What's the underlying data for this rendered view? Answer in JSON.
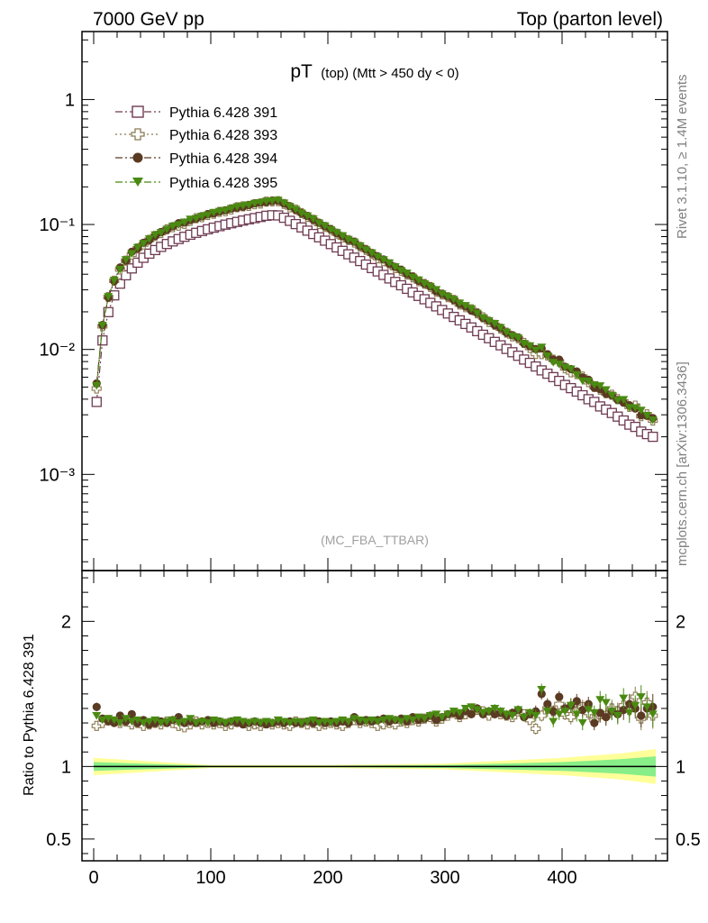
{
  "header": {
    "energy_label": "7000 GeV pp",
    "process_label": "Top (parton level)"
  },
  "side": {
    "rivet_label": "Rivet 3.1.10, ≥ 1.4M events",
    "site_label": "mcplots.cern.ch [arXiv:1306.3436]"
  },
  "chart_data": [
    {
      "type": "line",
      "panel": "main",
      "title_main": "pT",
      "title_sub": "(top) (Mtt > 450 dy < 0)",
      "watermark": "(MC_FBA_TTBAR)",
      "yscale": "log",
      "xlim": [
        -10,
        490
      ],
      "ylim": [
        0.00017,
        3.5
      ],
      "y_tick_labels": [
        "1",
        "10⁻¹",
        "10⁻²",
        "10⁻³"
      ],
      "y_tick_values": [
        1,
        0.1,
        0.01,
        0.001
      ],
      "legend_position": "top-left",
      "series": [
        {
          "name": "Pythia 6.428 391",
          "color": "#6e3a52",
          "marker": "open-square",
          "line": "dash-dot",
          "x": [
            2.5,
            7.5,
            12.5,
            17.5,
            22.5,
            27.5,
            32.5,
            37.5,
            42.5,
            47.5,
            52.5,
            57.5,
            62.5,
            67.5,
            72.5,
            77.5,
            82.5,
            87.5,
            92.5,
            97.5,
            102.5,
            107.5,
            112.5,
            117.5,
            122.5,
            127.5,
            132.5,
            137.5,
            142.5,
            147.5,
            152.5,
            157.5,
            162.5,
            167.5,
            172.5,
            177.5,
            182.5,
            187.5,
            192.5,
            197.5,
            202.5,
            207.5,
            212.5,
            217.5,
            222.5,
            227.5,
            232.5,
            237.5,
            242.5,
            247.5,
            252.5,
            257.5,
            262.5,
            267.5,
            272.5,
            277.5,
            282.5,
            287.5,
            292.5,
            297.5,
            302.5,
            307.5,
            312.5,
            317.5,
            322.5,
            327.5,
            332.5,
            337.5,
            342.5,
            347.5,
            352.5,
            357.5,
            362.5,
            367.5,
            372.5,
            377.5,
            382.5,
            387.5,
            392.5,
            397.5,
            402.5,
            407.5,
            412.5,
            417.5,
            422.5,
            427.5,
            432.5,
            437.5,
            442.5,
            447.5,
            452.5,
            457.5,
            462.5,
            467.5,
            472.5,
            477.5
          ],
          "y": [
            0.0038,
            0.0118,
            0.0199,
            0.0271,
            0.0336,
            0.0392,
            0.0445,
            0.0495,
            0.0541,
            0.0584,
            0.0624,
            0.0662,
            0.0698,
            0.0732,
            0.0765,
            0.0797,
            0.0828,
            0.0858,
            0.0887,
            0.0915,
            0.0943,
            0.097,
            0.0997,
            0.1023,
            0.1049,
            0.1075,
            0.11,
            0.1125,
            0.1149,
            0.1173,
            0.1186,
            0.1182,
            0.1132,
            0.107,
            0.1007,
            0.0948,
            0.0892,
            0.0839,
            0.0789,
            0.0742,
            0.0697,
            0.0655,
            0.0615,
            0.0578,
            0.0543,
            0.051,
            0.0478,
            0.0448,
            0.0421,
            0.0395,
            0.037,
            0.0347,
            0.0326,
            0.0306,
            0.0286,
            0.0268,
            0.0252,
            0.0236,
            0.0221,
            0.0207,
            0.0194,
            0.0182,
            0.0171,
            0.016,
            0.015,
            0.014,
            0.0131,
            0.0123,
            0.0115,
            0.0108,
            0.0101,
            0.0095,
            0.0089,
            0.0083,
            0.0078,
            0.0073,
            0.0068,
            0.0064,
            0.006,
            0.0056,
            0.0052,
            0.0049,
            0.0046,
            0.0043,
            0.004,
            0.0038,
            0.0035,
            0.0033,
            0.0031,
            0.0029,
            0.0027,
            0.0025,
            0.0024,
            0.0022,
            0.0021,
            0.002
          ]
        },
        {
          "name": "Pythia 6.428 393",
          "color": "#8c7a50",
          "marker": "open-cross",
          "line": "dotted",
          "x": [],
          "y": []
        },
        {
          "name": "Pythia 6.428 394",
          "color": "#5a3a22",
          "marker": "filled-circle",
          "line": "dash-dot",
          "x": [],
          "y": []
        },
        {
          "name": "Pythia 6.428 395",
          "color": "#4a8a12",
          "marker": "filled-triangle-down",
          "line": "dash-dot",
          "x": [],
          "y": []
        }
      ]
    },
    {
      "type": "line",
      "panel": "ratio",
      "ylabel": "Ratio to Pythia 6.428 391",
      "xlim": [
        -10,
        490
      ],
      "ylim": [
        0.35,
        2.35
      ],
      "y_tick_labels": [
        "2",
        "1",
        "0.5"
      ],
      "y_tick_values": [
        2,
        1,
        0.5
      ],
      "x_tick_labels": [
        "0",
        "100",
        "200",
        "300",
        "400"
      ],
      "x_tick_values": [
        0,
        100,
        200,
        300,
        400
      ],
      "reference_line": 1,
      "band_colors": {
        "outer": "#ffff99",
        "inner": "#88ee88"
      },
      "band_x": [
        0,
        100,
        200,
        300,
        350,
        400,
        450,
        480
      ],
      "band_outer_half_width": [
        0.06,
        0.01,
        0.01,
        0.02,
        0.04,
        0.06,
        0.09,
        0.12
      ],
      "band_inner_half_width": [
        0.03,
        0.005,
        0.005,
        0.01,
        0.02,
        0.03,
        0.05,
        0.07
      ],
      "series": [
        {
          "name": "Pythia 6.428 393",
          "marker": "open-cross",
          "color": "#8c7a50",
          "values": [
            1.28,
            1.3,
            1.32,
            1.31,
            1.3,
            1.31,
            1.29,
            1.3,
            1.28,
            1.29,
            1.3,
            1.29,
            1.31,
            1.3,
            1.28,
            1.27,
            1.29,
            1.31,
            1.29,
            1.3,
            1.29,
            1.3,
            1.28,
            1.29,
            1.31,
            1.3,
            1.28,
            1.29,
            1.28,
            1.3,
            1.29,
            1.3,
            1.29,
            1.28,
            1.31,
            1.3,
            1.29,
            1.3,
            1.28,
            1.29,
            1.3,
            1.29,
            1.28,
            1.3,
            1.32,
            1.3,
            1.31,
            1.3,
            1.28,
            1.29,
            1.3,
            1.29,
            1.31,
            1.3,
            1.32,
            1.31,
            1.33,
            1.34,
            1.31,
            1.33,
            1.35,
            1.37,
            1.34,
            1.36,
            1.4,
            1.39,
            1.38,
            1.35,
            1.37,
            1.36,
            1.35,
            1.34,
            1.38,
            1.36,
            1.32,
            1.26,
            1.35,
            1.4,
            1.38,
            1.43,
            1.36,
            1.34,
            1.38,
            1.41,
            1.37,
            1.32,
            1.36,
            1.35,
            1.4,
            1.38,
            1.42,
            1.39,
            1.48,
            1.33,
            1.44,
            1.35
          ],
          "errors": [
            0.02,
            0.02,
            0.01,
            0.01,
            0.01,
            0.01,
            0.01,
            0.01,
            0.01,
            0.01,
            0.01,
            0.01,
            0.01,
            0.01,
            0.01,
            0.01,
            0.01,
            0.01,
            0.01,
            0.01,
            0.01,
            0.01,
            0.01,
            0.01,
            0.01,
            0.01,
            0.01,
            0.01,
            0.01,
            0.01,
            0.01,
            0.01,
            0.01,
            0.01,
            0.01,
            0.01,
            0.01,
            0.01,
            0.01,
            0.01,
            0.01,
            0.01,
            0.01,
            0.01,
            0.01,
            0.01,
            0.01,
            0.01,
            0.01,
            0.01,
            0.01,
            0.01,
            0.01,
            0.02,
            0.02,
            0.02,
            0.02,
            0.02,
            0.02,
            0.02,
            0.02,
            0.02,
            0.02,
            0.02,
            0.02,
            0.03,
            0.03,
            0.03,
            0.03,
            0.03,
            0.03,
            0.03,
            0.03,
            0.03,
            0.03,
            0.04,
            0.04,
            0.04,
            0.04,
            0.04,
            0.04,
            0.05,
            0.05,
            0.05,
            0.05,
            0.05,
            0.06,
            0.06,
            0.06,
            0.06,
            0.07,
            0.07,
            0.07,
            0.08,
            0.08,
            0.09
          ]
        },
        {
          "name": "Pythia 6.428 394",
          "marker": "filled-circle",
          "color": "#5a3a22",
          "values": [
            1.41,
            1.33,
            1.31,
            1.3,
            1.35,
            1.31,
            1.36,
            1.3,
            1.32,
            1.29,
            1.3,
            1.31,
            1.3,
            1.32,
            1.34,
            1.3,
            1.31,
            1.3,
            1.31,
            1.32,
            1.3,
            1.31,
            1.3,
            1.31,
            1.3,
            1.29,
            1.3,
            1.31,
            1.3,
            1.29,
            1.3,
            1.31,
            1.3,
            1.31,
            1.3,
            1.3,
            1.31,
            1.3,
            1.31,
            1.3,
            1.31,
            1.3,
            1.31,
            1.3,
            1.34,
            1.31,
            1.32,
            1.31,
            1.32,
            1.33,
            1.31,
            1.32,
            1.33,
            1.31,
            1.34,
            1.32,
            1.33,
            1.35,
            1.32,
            1.34,
            1.36,
            1.37,
            1.35,
            1.38,
            1.36,
            1.4,
            1.36,
            1.38,
            1.36,
            1.37,
            1.35,
            1.37,
            1.39,
            1.34,
            1.36,
            1.38,
            1.5,
            1.43,
            1.38,
            1.48,
            1.4,
            1.42,
            1.45,
            1.39,
            1.43,
            1.3,
            1.37,
            1.34,
            1.38,
            1.36,
            1.39,
            1.43,
            1.4,
            1.35,
            1.4,
            1.41
          ],
          "errors": [
            0.03,
            0.02,
            0.02,
            0.01,
            0.01,
            0.01,
            0.01,
            0.01,
            0.01,
            0.01,
            0.01,
            0.01,
            0.01,
            0.01,
            0.01,
            0.01,
            0.01,
            0.01,
            0.01,
            0.01,
            0.01,
            0.01,
            0.01,
            0.01,
            0.01,
            0.01,
            0.01,
            0.01,
            0.01,
            0.01,
            0.01,
            0.01,
            0.01,
            0.01,
            0.01,
            0.01,
            0.01,
            0.01,
            0.01,
            0.01,
            0.01,
            0.01,
            0.01,
            0.01,
            0.01,
            0.01,
            0.01,
            0.01,
            0.01,
            0.01,
            0.01,
            0.01,
            0.01,
            0.02,
            0.02,
            0.02,
            0.02,
            0.02,
            0.02,
            0.02,
            0.02,
            0.02,
            0.02,
            0.02,
            0.02,
            0.03,
            0.03,
            0.03,
            0.03,
            0.03,
            0.03,
            0.03,
            0.03,
            0.03,
            0.03,
            0.04,
            0.04,
            0.04,
            0.04,
            0.04,
            0.04,
            0.05,
            0.05,
            0.05,
            0.05,
            0.05,
            0.06,
            0.06,
            0.06,
            0.06,
            0.07,
            0.07,
            0.07,
            0.08,
            0.08,
            0.09
          ]
        },
        {
          "name": "Pythia 6.428 395",
          "marker": "filled-triangle-down",
          "color": "#4a8a12",
          "values": [
            1.35,
            1.32,
            1.33,
            1.32,
            1.3,
            1.33,
            1.31,
            1.32,
            1.3,
            1.31,
            1.32,
            1.3,
            1.31,
            1.32,
            1.3,
            1.31,
            1.33,
            1.3,
            1.31,
            1.3,
            1.32,
            1.31,
            1.3,
            1.31,
            1.32,
            1.31,
            1.3,
            1.31,
            1.3,
            1.31,
            1.3,
            1.32,
            1.31,
            1.3,
            1.31,
            1.3,
            1.31,
            1.32,
            1.3,
            1.31,
            1.3,
            1.31,
            1.32,
            1.31,
            1.33,
            1.32,
            1.31,
            1.32,
            1.31,
            1.32,
            1.33,
            1.32,
            1.31,
            1.33,
            1.32,
            1.34,
            1.33,
            1.35,
            1.36,
            1.34,
            1.36,
            1.38,
            1.37,
            1.4,
            1.41,
            1.39,
            1.37,
            1.38,
            1.4,
            1.38,
            1.36,
            1.35,
            1.39,
            1.34,
            1.37,
            1.35,
            1.53,
            1.38,
            1.31,
            1.36,
            1.38,
            1.42,
            1.36,
            1.3,
            1.39,
            1.37,
            1.46,
            1.44,
            1.38,
            1.35,
            1.47,
            1.37,
            1.42,
            1.48,
            1.41,
            1.36
          ],
          "errors": [
            0.02,
            0.02,
            0.01,
            0.01,
            0.01,
            0.01,
            0.01,
            0.01,
            0.01,
            0.01,
            0.01,
            0.01,
            0.01,
            0.01,
            0.01,
            0.01,
            0.01,
            0.01,
            0.01,
            0.01,
            0.01,
            0.01,
            0.01,
            0.01,
            0.01,
            0.01,
            0.01,
            0.01,
            0.01,
            0.01,
            0.01,
            0.01,
            0.01,
            0.01,
            0.01,
            0.01,
            0.01,
            0.01,
            0.01,
            0.01,
            0.01,
            0.01,
            0.01,
            0.01,
            0.01,
            0.01,
            0.01,
            0.01,
            0.01,
            0.01,
            0.01,
            0.01,
            0.01,
            0.02,
            0.02,
            0.02,
            0.02,
            0.02,
            0.02,
            0.02,
            0.02,
            0.02,
            0.02,
            0.02,
            0.02,
            0.03,
            0.03,
            0.03,
            0.03,
            0.03,
            0.03,
            0.03,
            0.03,
            0.03,
            0.03,
            0.04,
            0.04,
            0.04,
            0.04,
            0.04,
            0.04,
            0.05,
            0.05,
            0.05,
            0.05,
            0.05,
            0.06,
            0.06,
            0.06,
            0.06,
            0.07,
            0.07,
            0.07,
            0.08,
            0.08,
            0.09
          ]
        }
      ]
    }
  ]
}
